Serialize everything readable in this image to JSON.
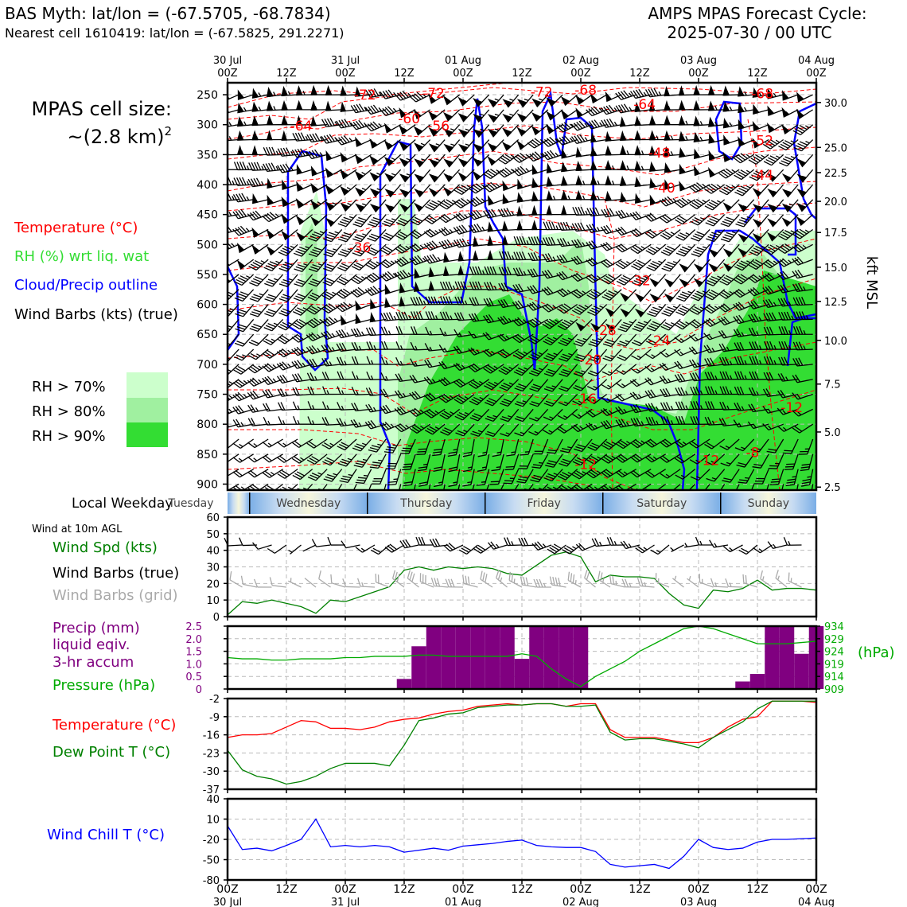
{
  "header": {
    "title_left": "BAS Myth: lat/lon = (-67.5705, -68.7834)",
    "subtitle_left": "Nearest cell 1610419: lat/lon = (-67.5825, 291.2271)",
    "title_right_1": "AMPS MPAS Forecast Cycle:",
    "title_right_2": "2025-07-30 / 00 UTC"
  },
  "time_axis": {
    "top_ticks": [
      "30 Jul\n00Z",
      "12Z",
      "31 Jul\n00Z",
      "12Z",
      "01 Aug\n00Z",
      "12Z",
      "02 Aug\n00Z",
      "12Z",
      "03 Aug\n00Z",
      "12Z",
      "04 Aug\n00Z"
    ],
    "bottom_ticks": [
      "00Z\n30 Jul",
      "12Z",
      "00Z\n31 Jul",
      "12Z",
      "00Z\n01 Aug",
      "12Z",
      "00Z\n02 Aug",
      "12Z",
      "00Z\n03 Aug",
      "12Z",
      "00Z\n04 Aug"
    ],
    "hours": [
      0,
      12,
      24,
      36,
      48,
      60,
      72,
      84,
      96,
      108,
      120
    ]
  },
  "colors": {
    "temperature": "#ff0000",
    "rh_light": "#ccffcc",
    "rh_mid": "#a0f0a0",
    "rh_dark": "#33dd33",
    "cloud": "#0000ff",
    "precip": "#800080",
    "pressure": "#00aa00",
    "dewpoint": "#008000",
    "windchill": "#0000ff",
    "wind_speed": "#008000",
    "grid_barb": "#aaaaaa"
  },
  "legend": {
    "cell_size_line1": "MPAS cell size:",
    "cell_size_line2": "~(2.8 km)",
    "cell_size_exp": "2",
    "temperature": "Temperature (°C)",
    "rh": "RH (%) wrt liq. wat",
    "cloud": "Cloud/Precip outline",
    "barbs": "Wind Barbs (kts) (true)",
    "rh70": "RH > 70%",
    "rh80": "RH > 80%",
    "rh90": "RH > 90%"
  },
  "weekday": {
    "label": "Local Weekday",
    "days": [
      "Tuesday",
      "Wednesday",
      "Thursday",
      "Friday",
      "Saturday",
      "Sunday"
    ]
  },
  "chart_data": [
    {
      "type": "heatmap",
      "panel": "vertical cross-section",
      "y_left_label": "",
      "y_left_ticks": [
        250,
        300,
        350,
        400,
        450,
        500,
        550,
        600,
        650,
        700,
        750,
        800,
        850,
        900
      ],
      "y_right_label": "kft MSL",
      "y_right_ticks": [
        {
          "kft": "30.0",
          "hpa": 263
        },
        {
          "kft": "25.0",
          "hpa": 338
        },
        {
          "kft": "22.5",
          "hpa": 380
        },
        {
          "kft": "20.0",
          "hpa": 428
        },
        {
          "kft": "17.5",
          "hpa": 480
        },
        {
          "kft": "15.0",
          "hpa": 538
        },
        {
          "kft": "12.5",
          "hpa": 595
        },
        {
          "kft": "10.0",
          "hpa": 660
        },
        {
          "kft": "7.5",
          "hpa": 733
        },
        {
          "kft": "5.0",
          "hpa": 813
        },
        {
          "kft": "2.5",
          "hpa": 905
        }
      ],
      "ylim": [
        230,
        910
      ],
      "xlim": [
        0,
        120
      ],
      "temperature_labels": [
        {
          "t": "-72",
          "h": 28,
          "p": 258
        },
        {
          "t": "-72",
          "h": 42,
          "p": 255
        },
        {
          "t": "-72",
          "h": 64,
          "p": 253
        },
        {
          "t": "-68",
          "h": 73,
          "p": 250
        },
        {
          "t": "-68",
          "h": 109,
          "p": 256
        },
        {
          "t": "-64",
          "h": 15,
          "p": 310
        },
        {
          "t": "-60",
          "h": 37,
          "p": 298
        },
        {
          "t": "-64",
          "h": 85,
          "p": 274
        },
        {
          "t": "-56",
          "h": 43,
          "p": 310
        },
        {
          "t": "-52",
          "h": 109,
          "p": 334
        },
        {
          "t": "-48",
          "h": 88,
          "p": 355
        },
        {
          "t": "-44",
          "h": 109,
          "p": 392
        },
        {
          "t": "-40",
          "h": 89,
          "p": 413
        },
        {
          "t": "-36",
          "h": 27,
          "p": 513
        },
        {
          "t": "-32",
          "h": 84,
          "p": 568
        },
        {
          "t": "-28",
          "h": 77,
          "p": 651
        },
        {
          "t": "-24",
          "h": 88,
          "p": 668
        },
        {
          "t": "-20",
          "h": 74,
          "p": 700
        },
        {
          "t": "-16",
          "h": 73,
          "p": 765
        },
        {
          "t": "-12",
          "h": 115,
          "p": 780
        },
        {
          "t": "-8",
          "h": 107,
          "p": 855
        },
        {
          "t": "-12",
          "h": 98,
          "p": 868
        },
        {
          "t": "-12",
          "h": 73,
          "p": 875
        }
      ]
    },
    {
      "type": "line",
      "panel": "wind 10m",
      "label_top": "Wind at 10m AGL",
      "legend": [
        "Wind Spd (kts)",
        "Wind Barbs (true)",
        "Wind Barbs (grid)"
      ],
      "ylim": [
        0,
        60
      ],
      "yticks": [
        0,
        10,
        20,
        30,
        40,
        50,
        60
      ],
      "x": [
        0,
        3,
        6,
        9,
        12,
        15,
        18,
        21,
        24,
        27,
        30,
        33,
        36,
        39,
        42,
        45,
        48,
        51,
        54,
        57,
        60,
        63,
        66,
        69,
        72,
        75,
        78,
        81,
        84,
        87,
        90,
        93,
        96,
        99,
        102,
        105,
        108,
        111,
        114,
        117,
        120
      ],
      "wind_speed": [
        1,
        9,
        8,
        10,
        8,
        6,
        2,
        10,
        9,
        12,
        15,
        18,
        28,
        30,
        28,
        30,
        29,
        30,
        29,
        26,
        25,
        31,
        37,
        39,
        36,
        21,
        25,
        24,
        24,
        23,
        14,
        7,
        5,
        16,
        15,
        17,
        22,
        16,
        17,
        17,
        16
      ]
    },
    {
      "type": "bar",
      "panel": "precip and pressure",
      "legend": [
        "Precip (mm)",
        "liquid eqiv.",
        "3-hr accum",
        "Pressure (hPa)"
      ],
      "y_left_ticks": [
        "0",
        "0.5",
        "1.0",
        "1.5",
        "2.0",
        "2.5"
      ],
      "y_left_range": [
        0,
        2.5
      ],
      "y_right_ticks": [
        "909",
        "914",
        "919",
        "924",
        "929",
        "934"
      ],
      "y_right_range": [
        909,
        934
      ],
      "y_right_label": "(hPa)",
      "x": [
        0,
        3,
        6,
        9,
        12,
        15,
        18,
        21,
        24,
        27,
        30,
        33,
        36,
        39,
        42,
        45,
        48,
        51,
        54,
        57,
        60,
        63,
        66,
        69,
        72,
        75,
        78,
        81,
        84,
        87,
        90,
        93,
        96,
        99,
        102,
        105,
        108,
        111,
        114,
        117,
        120
      ],
      "precip": [
        0,
        0,
        0,
        0,
        0,
        0,
        0,
        0,
        0,
        0,
        0,
        0,
        0.4,
        1.7,
        2.5,
        2.5,
        2.5,
        2.5,
        2.5,
        2.5,
        1.2,
        2.5,
        2.5,
        2.5,
        2.5,
        0,
        0,
        0,
        0,
        0,
        0,
        0,
        0,
        0,
        0,
        0.3,
        0.6,
        2.5,
        2.5,
        1.4,
        2.5
      ],
      "pressure": [
        921.5,
        921,
        921,
        920.5,
        920.5,
        921,
        921,
        921,
        921.5,
        921.5,
        922,
        922,
        922,
        922.5,
        922.5,
        922,
        922,
        922,
        922,
        922,
        923,
        922,
        917,
        913,
        910,
        914,
        917,
        920,
        924,
        927,
        930,
        933,
        934,
        933,
        931,
        929,
        927,
        927,
        927,
        927.5,
        928
      ]
    },
    {
      "type": "line",
      "panel": "temperature and dewpoint",
      "legend": [
        "Temperature (°C)",
        "Dew Point T (°C)"
      ],
      "ylim": [
        -37,
        -2
      ],
      "yticks": [
        -37,
        -30,
        -23,
        -16,
        -9,
        -2
      ],
      "x": [
        0,
        3,
        6,
        9,
        12,
        15,
        18,
        21,
        24,
        27,
        30,
        33,
        36,
        39,
        42,
        45,
        48,
        51,
        54,
        57,
        60,
        63,
        66,
        69,
        72,
        75,
        78,
        81,
        84,
        87,
        90,
        93,
        96,
        99,
        102,
        105,
        108,
        111,
        114,
        117,
        120
      ],
      "temperature": [
        -17,
        -16,
        -16,
        -15.5,
        -13,
        -10.5,
        -11,
        -13.5,
        -13.5,
        -14,
        -13,
        -11,
        -10,
        -9.5,
        -8,
        -7,
        -6.5,
        -5,
        -4.5,
        -4,
        -4.5,
        -4,
        -4,
        -5,
        -4,
        -4,
        -14,
        -17,
        -17,
        -17,
        -18,
        -19,
        -19,
        -17,
        -13,
        -10,
        -9,
        -3,
        -3,
        -3,
        -3.5
      ],
      "dewpoint": [
        -22,
        -29.5,
        -32,
        -33,
        -35,
        -34,
        -32,
        -29,
        -27,
        -27,
        -27,
        -28,
        -20,
        -10.5,
        -9.5,
        -8,
        -7.5,
        -5.5,
        -5,
        -4.5,
        -4.5,
        -4,
        -4,
        -5,
        -5,
        -4.5,
        -15,
        -18,
        -17.5,
        -17.5,
        -18.5,
        -19.5,
        -21,
        -17,
        -14,
        -11,
        -6,
        -3,
        -3,
        -3,
        -3
      ]
    },
    {
      "type": "line",
      "panel": "wind chill",
      "legend": [
        "Wind Chill T (°C)"
      ],
      "ylim": [
        -80,
        40
      ],
      "yticks": [
        -80,
        -50,
        -20,
        10,
        40
      ],
      "x": [
        0,
        3,
        6,
        9,
        12,
        15,
        18,
        21,
        24,
        27,
        30,
        33,
        36,
        39,
        42,
        45,
        48,
        51,
        54,
        57,
        60,
        63,
        66,
        69,
        72,
        75,
        78,
        81,
        84,
        87,
        90,
        93,
        96,
        99,
        102,
        105,
        108,
        111,
        114,
        117,
        120
      ],
      "wind_chill": [
        0,
        -35,
        -33,
        -37,
        -29,
        -20,
        10,
        -31,
        -29,
        -31,
        -29,
        -31,
        -39,
        -36,
        -33,
        -36,
        -30,
        -28,
        -26,
        -23,
        -21,
        -29,
        -31,
        -32,
        -32,
        -38,
        -57,
        -61,
        -59,
        -57,
        -63,
        -45,
        -20,
        -32,
        -35,
        -33,
        -24,
        -20,
        -20,
        -19,
        -18
      ]
    }
  ]
}
